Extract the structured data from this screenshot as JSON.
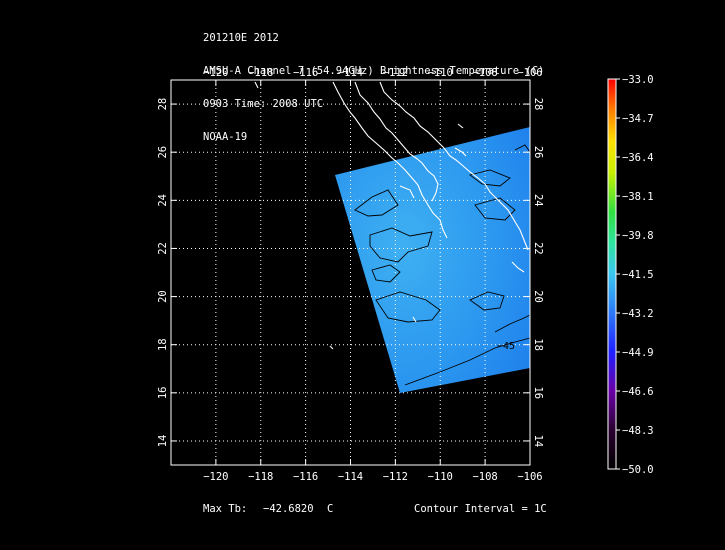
{
  "header": {
    "line1": "201210E 2012",
    "line2": "AMSU-A Channel 7 (54.94GHz) Brightness Temperature (C)",
    "line3": "0903 Time: 2008 UTC",
    "line4": "NOAA-19"
  },
  "map": {
    "lon_ticks": [
      "−120",
      "−118",
      "−116",
      "−114",
      "−112",
      "−110",
      "−108",
      "−106"
    ],
    "lat_ticks": [
      "14",
      "16",
      "18",
      "20",
      "22",
      "24",
      "26",
      "28"
    ],
    "lon_range": [
      -122,
      -106
    ],
    "lat_range": [
      13,
      29
    ],
    "contour_label": "−45",
    "colors": {
      "background": "#000000",
      "frame": "#ffffff",
      "swath": "#2a98f0",
      "coast": "#ffffff",
      "contour": "#000000"
    }
  },
  "colorbar": {
    "labels": [
      "−33.0",
      "−34.7",
      "−36.4",
      "−38.1",
      "−39.8",
      "−41.5",
      "−43.2",
      "−44.9",
      "−46.6",
      "−48.3",
      "−50.0"
    ],
    "range": [
      -50.0,
      -33.0
    ]
  },
  "footer": {
    "max_label": "Max Tb:",
    "max_value": "−42.6820",
    "max_unit": "C",
    "contour_interval": "Contour Interval = 1C"
  }
}
